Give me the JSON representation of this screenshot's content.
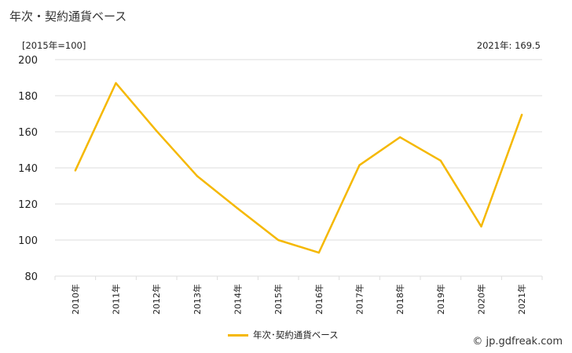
{
  "title": "年次・契約通貨ベース",
  "unit_label": "[2015年=100]",
  "latest_label": "2021年: 169.5",
  "credit": "© jp.gdfreak.com",
  "chart_data": {
    "type": "line",
    "categories": [
      "2010年",
      "2011年",
      "2012年",
      "2013年",
      "2014年",
      "2015年",
      "2016年",
      "2017年",
      "2018年",
      "2019年",
      "2020年",
      "2021年"
    ],
    "series": [
      {
        "name": "年次･契約通貨ベース",
        "color": "#f5b800",
        "values": [
          138.5,
          187.0,
          160.5,
          135.5,
          117.5,
          100.0,
          93.0,
          141.5,
          157.0,
          144.0,
          107.5,
          169.5
        ]
      }
    ],
    "yticks": [
      80,
      100,
      120,
      140,
      160,
      180,
      200
    ],
    "ylim": [
      80,
      200
    ],
    "grid": true,
    "legend_position": "bottom"
  }
}
